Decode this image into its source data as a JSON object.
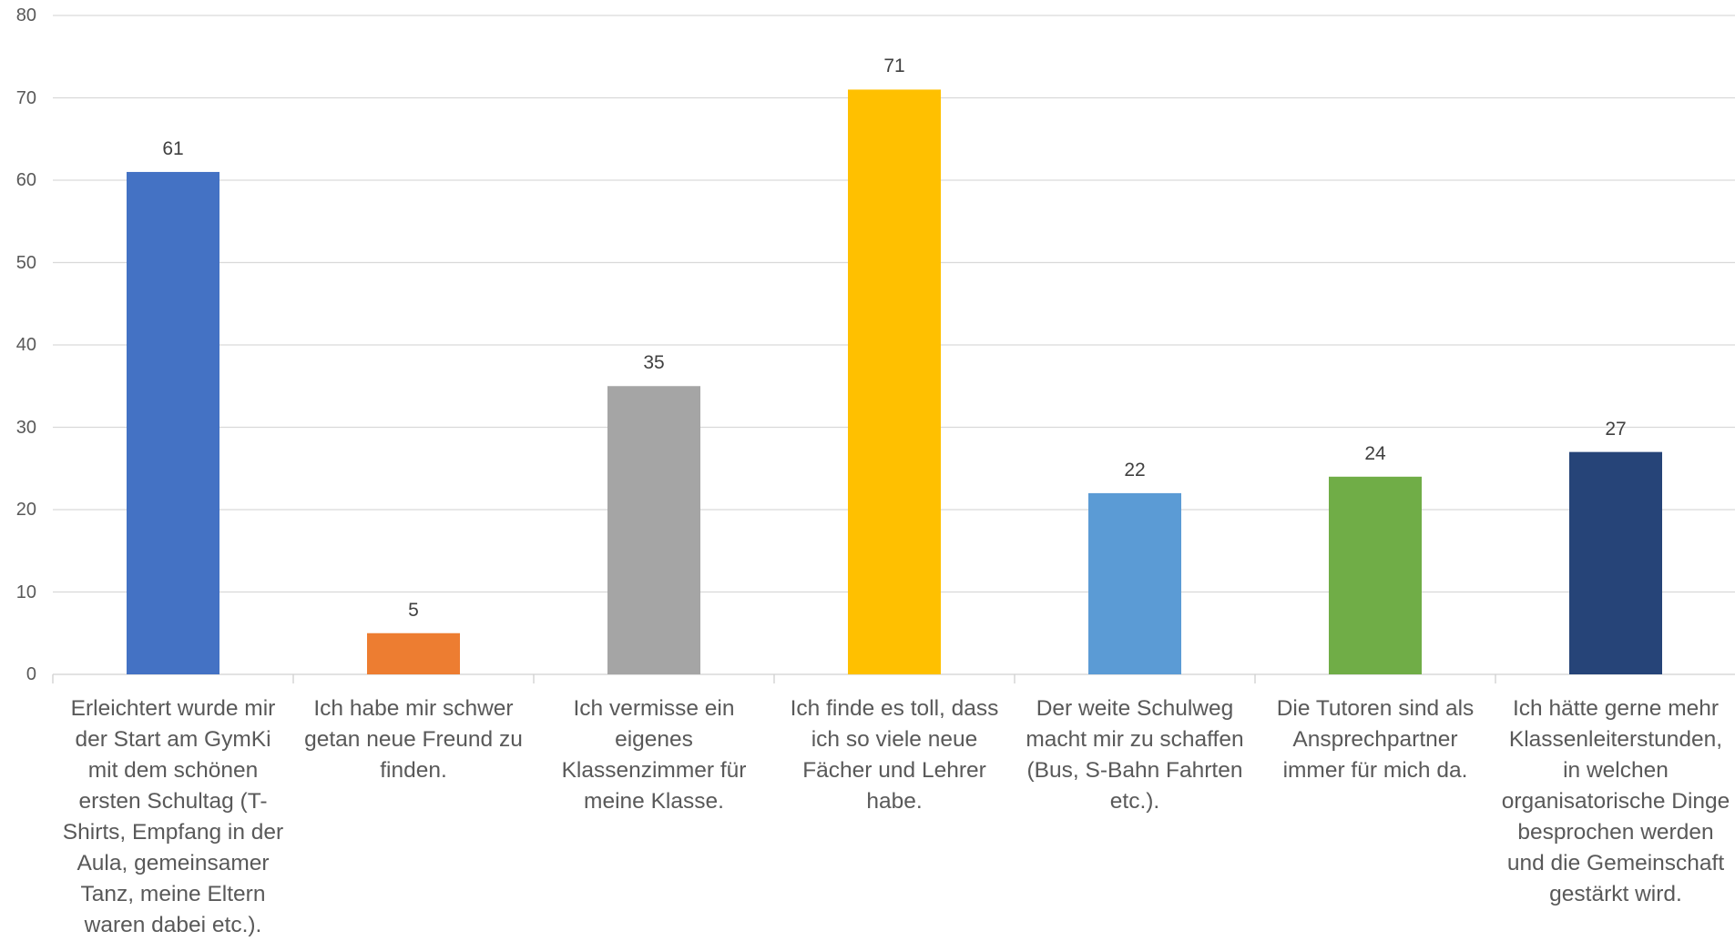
{
  "chart_data": {
    "type": "bar",
    "title": "",
    "xlabel": "",
    "ylabel": "",
    "ylim": [
      0,
      80
    ],
    "yticks": [
      0,
      10,
      20,
      30,
      40,
      50,
      60,
      70,
      80
    ],
    "grid": true,
    "legend": "none",
    "data_labels": true,
    "categories": [
      "Erleichtert wurde mir\nder Start am GymKi\nmit dem schönen\nersten Schultag (T-\nShirts, Empfang in der\nAula, gemeinsamer\nTanz, meine Eltern\nwaren dabei etc.).",
      "Ich habe mir schwer\ngetan neue Freund zu\nfinden.",
      "Ich vermisse ein\neigenes\nKlassenzimmer für\nmeine Klasse.",
      "Ich finde es toll, dass\nich so viele neue\nFächer und Lehrer\nhabe.",
      "Der weite Schulweg\nmacht mir zu schaffen\n(Bus, S-Bahn Fahrten\netc.).",
      "Die Tutoren sind als\nAnsprechpartner\nimmer für mich da.",
      "Ich hätte gerne mehr\nKlassenleiterstunden,\nin welchen\norganisatorische Dinge\nbesprochen werden\nund die Gemeinschaft\ngestärkt wird."
    ],
    "values": [
      61,
      5,
      35,
      71,
      22,
      24,
      27
    ],
    "colors": [
      "#4472C4",
      "#ED7D31",
      "#A5A5A5",
      "#FFC000",
      "#5B9BD5",
      "#70AD47",
      "#264478"
    ]
  }
}
